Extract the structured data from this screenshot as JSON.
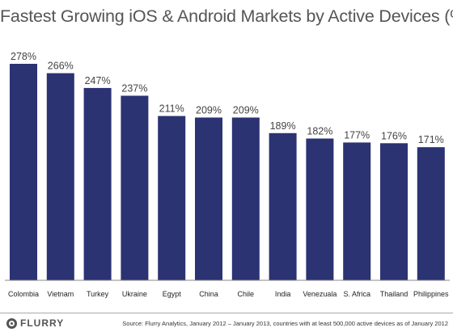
{
  "chart_data": {
    "type": "bar",
    "title": "Fastest Growing iOS & Android Markets by Active Devices (%)",
    "categories": [
      "Colombia",
      "Vietnam",
      "Turkey",
      "Ukraine",
      "Egypt",
      "China",
      "Chile",
      "India",
      "Venezuala",
      "S. Africa",
      "Thailand",
      "Philippines"
    ],
    "values": [
      278,
      266,
      247,
      237,
      211,
      209,
      209,
      189,
      182,
      177,
      176,
      171
    ],
    "value_labels": [
      "278%",
      "266%",
      "247%",
      "237%",
      "211%",
      "209%",
      "209%",
      "189%",
      "182%",
      "177%",
      "176%",
      "171%"
    ],
    "xlabel": "",
    "ylabel": "",
    "ylim": [
      0,
      278
    ],
    "grid": false,
    "legend": "none",
    "bar_color": "#2b3373"
  },
  "footer": {
    "logo_text": "FLURRY",
    "source": "Source: Flurry Analytics, January 2012 – January 2013, countries with at least 500,000 active devices as of January 2012"
  }
}
